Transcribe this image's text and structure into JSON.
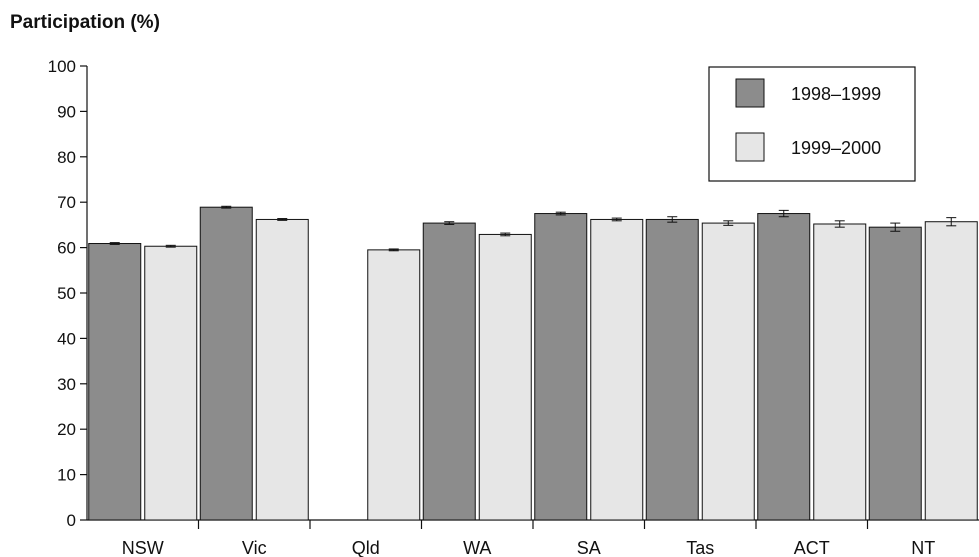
{
  "chart_data": {
    "type": "bar",
    "ylabel": "Participation (%)",
    "xlabel": "",
    "ylim": [
      0,
      100
    ],
    "yticks": [
      0,
      10,
      20,
      30,
      40,
      50,
      60,
      70,
      80,
      90,
      100
    ],
    "categories": [
      "NSW",
      "Vic",
      "Qld",
      "WA",
      "SA",
      "Tas",
      "ACT",
      "NT"
    ],
    "series": [
      {
        "name": "1998–1999",
        "color": "#8c8c8c",
        "values": [
          60.9,
          68.9,
          null,
          65.4,
          67.5,
          66.2,
          67.5,
          64.5
        ],
        "error": [
          0.2,
          0.2,
          null,
          0.3,
          0.3,
          0.6,
          0.7,
          0.9
        ]
      },
      {
        "name": "1999–2000",
        "color": "#e6e6e6",
        "values": [
          60.3,
          66.2,
          59.5,
          62.9,
          66.2,
          65.4,
          65.2,
          65.7
        ],
        "error": [
          0.2,
          0.2,
          0.2,
          0.3,
          0.3,
          0.5,
          0.7,
          0.9
        ]
      }
    ],
    "legend": "top-right",
    "grid": false
  }
}
